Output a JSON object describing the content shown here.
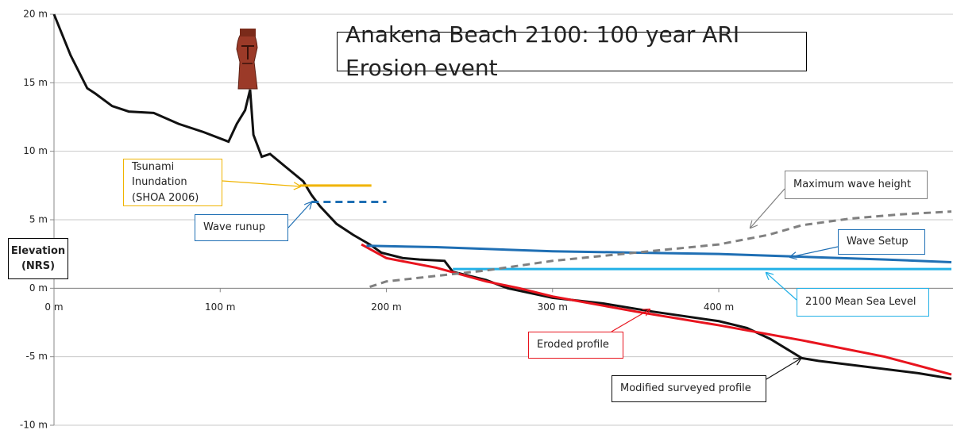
{
  "chart_data": {
    "type": "line",
    "title": "Anakena Beach 2100: 100 year ARI Erosion event",
    "y_label": "Elevation (NRS)",
    "xlim": [
      0,
      540
    ],
    "ylim": [
      -10,
      20
    ],
    "xticks": [
      {
        "value": 0,
        "label": "0 m"
      },
      {
        "value": 100,
        "label": "100 m"
      },
      {
        "value": 200,
        "label": "200 m"
      },
      {
        "value": 300,
        "label": "300 m"
      },
      {
        "value": 400,
        "label": "400 m"
      }
    ],
    "yticks": [
      {
        "value": -10,
        "label": "-10 m"
      },
      {
        "value": -5,
        "label": "-5 m"
      },
      {
        "value": 0,
        "label": "0 m"
      },
      {
        "value": 5,
        "label": "5 m"
      },
      {
        "value": 10,
        "label": "10 m"
      },
      {
        "value": 15,
        "label": "15 m"
      },
      {
        "value": 20,
        "label": "20 m"
      }
    ],
    "grid": true,
    "series": [
      {
        "name": "Modified surveyed profile",
        "color": "#111111",
        "style": "solid",
        "x": [
          0,
          10,
          20,
          25,
          35,
          45,
          60,
          75,
          90,
          105,
          110,
          115,
          118,
          120,
          125,
          130,
          140,
          150,
          155,
          160,
          170,
          180,
          190,
          197,
          210,
          220,
          235,
          240,
          260,
          273,
          300,
          330,
          360,
          400,
          417,
          431,
          450,
          460,
          480,
          520,
          540
        ],
        "values": [
          20,
          17,
          14.6,
          14.2,
          13.3,
          12.9,
          12.8,
          12,
          11.4,
          10.7,
          12,
          13,
          14.5,
          11.2,
          9.6,
          9.8,
          8.8,
          7.8,
          6.8,
          6,
          4.7,
          3.9,
          3.2,
          2.6,
          2.2,
          2.1,
          2.0,
          1.2,
          0.6,
          0,
          -0.7,
          -1.1,
          -1.7,
          -2.4,
          -2.9,
          -3.7,
          -5.1,
          -5.3,
          -5.6,
          -6.2,
          -6.6
        ]
      },
      {
        "name": "Eroded profile",
        "color": "#e8141e",
        "style": "solid",
        "x": [
          185,
          200,
          230,
          260,
          280,
          300,
          350,
          400,
          450,
          500,
          540
        ],
        "values": [
          3.2,
          2.2,
          1.5,
          0.5,
          0,
          -0.6,
          -1.7,
          -2.7,
          -3.8,
          -5,
          -6.3
        ]
      },
      {
        "name": "Wave Setup",
        "color": "#1f6fb4",
        "style": "solid",
        "x": [
          188,
          230,
          300,
          350,
          400,
          450,
          500,
          540
        ],
        "values": [
          3.1,
          3.0,
          2.7,
          2.6,
          2.5,
          2.3,
          2.1,
          1.9
        ]
      },
      {
        "name": "2100 Mean Sea Level",
        "color": "#22b0e6",
        "style": "solid",
        "x": [
          240,
          540
        ],
        "values": [
          1.4,
          1.4
        ]
      },
      {
        "name": "Maximum wave height",
        "color": "#808080",
        "style": "dashed",
        "x": [
          190,
          200,
          230,
          260,
          300,
          350,
          400,
          430,
          450,
          480,
          510,
          540
        ],
        "values": [
          0.1,
          0.5,
          0.9,
          1.3,
          2.0,
          2.6,
          3.2,
          3.9,
          4.6,
          5.1,
          5.4,
          5.6
        ]
      },
      {
        "name": "Tsunami Inundation (SHOA 2006)",
        "color": "#f0b400",
        "style": "solid",
        "x": [
          148,
          191
        ],
        "values": [
          7.5,
          7.5
        ]
      },
      {
        "name": "Wave runup",
        "color": "#1f6fb4",
        "style": "dashed",
        "x": [
          155,
          200
        ],
        "values": [
          6.3,
          6.3
        ]
      }
    ]
  }
}
